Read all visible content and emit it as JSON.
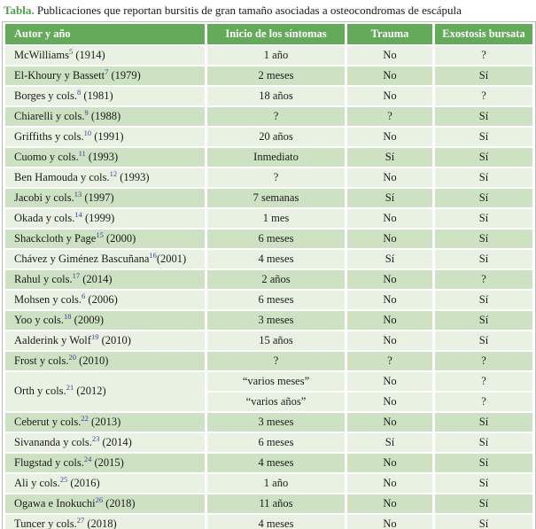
{
  "title": {
    "label": "Tabla.",
    "text": " Publicaciones que reportan bursitis de gran tamaño asociadas a osteocondromas de escápula"
  },
  "colors": {
    "header_bg": "#63aa59",
    "row_light": "#e8f1e2",
    "row_dark": "#cde1c3",
    "accent_green": "#4f9f48",
    "superscript": "#3f3f94",
    "border": "#bcbcbc"
  },
  "table": {
    "headers": [
      "Autor y año",
      "Inicio de los síntomas",
      "Trauma",
      "Exostosis bursata"
    ],
    "rows": [
      {
        "author": "McWilliams",
        "ref": "5",
        "year": " (1914)",
        "entries": [
          {
            "inicio": "1 año",
            "trauma": "No",
            "exostosis": "?"
          }
        ]
      },
      {
        "author": "El-Khoury y Bassett",
        "ref": "7",
        "year": " (1979)",
        "entries": [
          {
            "inicio": "2 meses",
            "trauma": "No",
            "exostosis": "Sí"
          }
        ]
      },
      {
        "author": "Borges y cols.",
        "ref": "8",
        "year": " (1981)",
        "entries": [
          {
            "inicio": "18 años",
            "trauma": "No",
            "exostosis": "?"
          }
        ]
      },
      {
        "author": "Chiarelli y cols.",
        "ref": "9",
        "year": " (1988)",
        "entries": [
          {
            "inicio": "?",
            "trauma": "?",
            "exostosis": "Sí"
          }
        ]
      },
      {
        "author": "Griffiths y cols.",
        "ref": "10",
        "year": " (1991)",
        "entries": [
          {
            "inicio": "20 años",
            "trauma": "No",
            "exostosis": "Sí"
          }
        ]
      },
      {
        "author": "Cuomo y cols.",
        "ref": "11",
        "year": " (1993)",
        "entries": [
          {
            "inicio": "Inmediato",
            "trauma": "Sí",
            "exostosis": "Sí"
          }
        ]
      },
      {
        "author": "Ben Hamouda y cols.",
        "ref": "12",
        "year": " (1993)",
        "entries": [
          {
            "inicio": "?",
            "trauma": "No",
            "exostosis": "Sí"
          }
        ]
      },
      {
        "author": "Jacobi y cols.",
        "ref": "13",
        "year": " (1997)",
        "entries": [
          {
            "inicio": "7 semanas",
            "trauma": "Sí",
            "exostosis": "Sí"
          }
        ]
      },
      {
        "author": "Okada y cols.",
        "ref": "14",
        "year": " (1999)",
        "entries": [
          {
            "inicio": "1 mes",
            "trauma": "No",
            "exostosis": "Sí"
          }
        ]
      },
      {
        "author": "Shackcloth y Page",
        "ref": "15",
        "year": " (2000)",
        "entries": [
          {
            "inicio": "6 meses",
            "trauma": "No",
            "exostosis": "Sí"
          }
        ]
      },
      {
        "author": "Chávez y Giménez Bascuñana",
        "ref": "16",
        "year": "(2001)",
        "entries": [
          {
            "inicio": "4 meses",
            "trauma": "Sí",
            "exostosis": "Sí"
          }
        ]
      },
      {
        "author": "Rahul y cols.",
        "ref": "17",
        "year": " (2014)",
        "entries": [
          {
            "inicio": "2 años",
            "trauma": "No",
            "exostosis": "?"
          }
        ]
      },
      {
        "author": "Mohsen y cols.",
        "ref": "6",
        "year": " (2006)",
        "entries": [
          {
            "inicio": "6 meses",
            "trauma": "No",
            "exostosis": "Sí"
          }
        ]
      },
      {
        "author": "Yoo y cols.",
        "ref": "18",
        "year": " (2009)",
        "entries": [
          {
            "inicio": "3 meses",
            "trauma": "No",
            "exostosis": "Sí"
          }
        ]
      },
      {
        "author": "Aalderink y Wolf",
        "ref": "19",
        "year": " (2010)",
        "entries": [
          {
            "inicio": "15 años",
            "trauma": "No",
            "exostosis": "Sí"
          }
        ]
      },
      {
        "author": "Frost y cols.",
        "ref": "20",
        "year": " (2010)",
        "entries": [
          {
            "inicio": "?",
            "trauma": "?",
            "exostosis": "?"
          }
        ]
      },
      {
        "author": "Orth y cols.",
        "ref": "21",
        "year": " (2012)",
        "entries": [
          {
            "inicio": "“varios meses”",
            "trauma": "No",
            "exostosis": "?"
          },
          {
            "inicio": "“varios años”",
            "trauma": "No",
            "exostosis": "?"
          }
        ]
      },
      {
        "author": "Ceberut y cols.",
        "ref": "22",
        "year": " (2013)",
        "entries": [
          {
            "inicio": "3 meses",
            "trauma": "No",
            "exostosis": "Sí"
          }
        ]
      },
      {
        "author": "Sivananda y cols.",
        "ref": "23",
        "year": " (2014)",
        "entries": [
          {
            "inicio": "6 meses",
            "trauma": "Sí",
            "exostosis": "Sí"
          }
        ]
      },
      {
        "author": "Flugstad y cols.",
        "ref": "24",
        "year": " (2015)",
        "entries": [
          {
            "inicio": "4 meses",
            "trauma": "No",
            "exostosis": "Sí"
          }
        ]
      },
      {
        "author": "Ali y cols.",
        "ref": "25",
        "year": " (2016)",
        "entries": [
          {
            "inicio": "1 año",
            "trauma": "No",
            "exostosis": "Sí"
          }
        ]
      },
      {
        "author": "Ogawa e Inokuchi",
        "ref": "26",
        "year": " (2018)",
        "entries": [
          {
            "inicio": "11 años",
            "trauma": "No",
            "exostosis": "Sí"
          }
        ]
      },
      {
        "author": "Tuncer y cols.",
        "ref": "27",
        "year": " (2018)",
        "entries": [
          {
            "inicio": "4 meses",
            "trauma": "No",
            "exostosis": "Sí"
          }
        ]
      }
    ]
  }
}
